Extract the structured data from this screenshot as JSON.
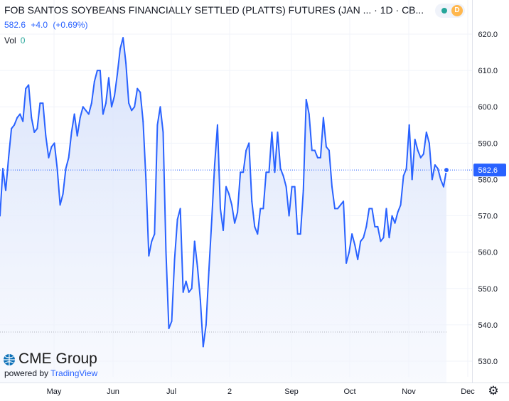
{
  "header": {
    "title": "FOB SANTOS SOYBEANS FINANCIALLY SETTLED (PLATTS) FUTURES (JAN ... · 1D · CB...",
    "last_price": "582.6",
    "change": "+4.0",
    "change_pct": "(+0.69%)",
    "vol_label": "Vol",
    "vol_value": "0",
    "status_badge": "D"
  },
  "logo": {
    "brand": "CME Group",
    "powered_by": "powered by",
    "powered_by_brand": "TradingView"
  },
  "colors": {
    "line": "#2962ff",
    "fill": "#e3ebfc",
    "grid": "#f0f3fa",
    "axis_text": "#131722"
  },
  "chart_data": {
    "type": "area",
    "title": "FOB SANTOS SOYBEANS FINANCIALLY SETTLED (PLATTS) FUTURES (JAN ...",
    "interval": "1D",
    "ylim": [
      527,
      624
    ],
    "yticks": [
      530,
      540,
      550,
      560,
      570,
      580,
      590,
      600,
      610,
      620
    ],
    "xticks": [
      "May",
      "Jun",
      "Jul",
      "2",
      "Sep",
      "Oct",
      "Nov",
      "Dec"
    ],
    "last_value": 582.6,
    "last_value_label": "582.6",
    "grid": true,
    "series": [
      {
        "values": [
          570,
          583,
          577,
          586,
          594,
          595,
          597,
          598,
          596,
          605,
          606,
          597,
          593,
          594,
          601,
          601,
          592,
          586,
          589,
          590,
          583,
          573,
          576,
          583,
          586,
          593,
          598,
          592,
          597,
          600,
          599,
          598,
          601,
          607,
          610,
          610,
          598,
          601,
          608,
          600,
          603,
          609,
          616,
          619,
          612,
          601,
          599,
          600,
          605,
          604,
          596,
          580,
          559,
          563,
          565,
          595,
          600,
          593,
          560,
          539,
          541,
          558,
          569,
          572,
          549,
          552,
          549,
          550,
          563,
          556,
          547,
          534,
          540,
          555,
          569,
          584,
          595,
          572,
          566,
          578,
          576,
          573,
          568,
          571,
          582,
          582,
          588,
          590,
          574,
          567,
          565,
          572,
          572,
          582,
          582,
          593,
          582,
          593,
          583,
          581,
          578,
          570,
          578,
          578,
          565,
          565,
          577,
          602,
          598,
          588,
          588,
          586,
          586,
          597,
          589,
          588,
          578,
          572,
          572,
          573,
          574,
          557,
          560,
          565,
          562,
          558,
          563,
          564,
          567,
          572,
          572,
          567,
          567,
          563,
          564,
          572,
          564,
          570,
          568,
          571,
          573,
          581,
          583,
          595,
          580,
          591,
          588,
          586,
          587,
          593,
          590,
          580,
          584,
          583,
          580,
          578,
          582.6
        ]
      }
    ]
  }
}
